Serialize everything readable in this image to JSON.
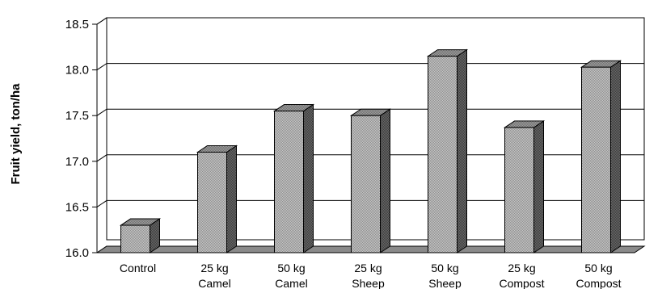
{
  "chart_data": {
    "type": "bar",
    "style": "3d-column",
    "categories": [
      [
        "Control"
      ],
      [
        "25 kg",
        "Camel"
      ],
      [
        "50 kg",
        "Camel"
      ],
      [
        "25 kg",
        "Sheep"
      ],
      [
        "50 kg",
        "Sheep"
      ],
      [
        "25 kg",
        "Compost"
      ],
      [
        "50 kg",
        "Compost"
      ]
    ],
    "values": [
      16.3,
      17.1,
      17.55,
      17.5,
      18.15,
      17.37,
      18.03
    ],
    "ylabel": "Fruit yield, ton/ha",
    "xlabel": "",
    "title": "",
    "ylim": [
      16.0,
      18.5
    ],
    "yticks": [
      16.0,
      16.5,
      17.0,
      17.5,
      18.0,
      18.5
    ],
    "ytick_labels": [
      "16.0",
      "16.5",
      "17.0",
      "17.5",
      "18.0",
      "18.5"
    ],
    "grid": true,
    "legend": "none",
    "colors": {
      "bar_front": "#b4b4b4",
      "bar_top": "#8c8c8c",
      "bar_side": "#5a5a5a",
      "floor": "#8a8a8a",
      "wall": "#ffffff",
      "grid": "#000000"
    }
  }
}
